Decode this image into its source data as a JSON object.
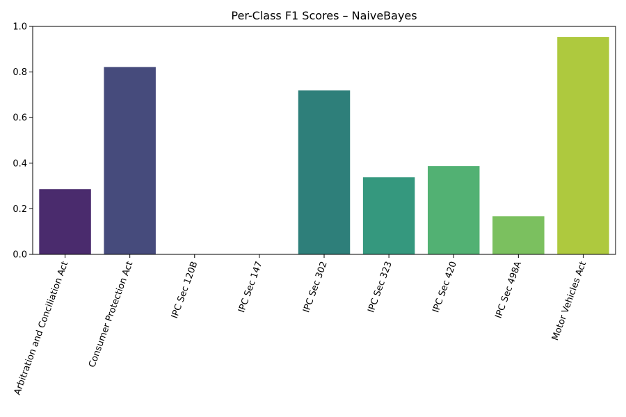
{
  "chart_data": {
    "type": "bar",
    "title": "Per-Class F1 Scores – NaiveBayes",
    "xlabel": "",
    "ylabel": "",
    "categories": [
      "Arbitration and Conciliation Act",
      "Consumer Protection Act",
      "IPC Sec 120B",
      "IPC Sec 147",
      "IPC Sec 302",
      "IPC Sec 323",
      "IPC Sec 420",
      "IPC Sec 498A",
      "Motor Vehicles Act"
    ],
    "values": [
      0.286,
      0.822,
      0.0,
      0.0,
      0.719,
      0.338,
      0.387,
      0.167,
      0.954
    ],
    "colors": [
      "#482173",
      "#433e85",
      "#38588c",
      "#2d708e",
      "#25858e",
      "#1e9b8a",
      "#2ab07f",
      "#52c569",
      "#86d549"
    ],
    "bar_colors": [
      "#4a2b6d",
      "#464b7c",
      "#3b6087",
      "#347185",
      "#2e7f7a",
      "#35987e",
      "#52b173",
      "#7bc05f",
      "#aec93e"
    ],
    "ylim": [
      0,
      1.0
    ],
    "yticks": [
      "0.0",
      "0.2",
      "0.4",
      "0.6",
      "0.8",
      "1.0"
    ],
    "ytick_values": [
      0.0,
      0.2,
      0.4,
      0.6,
      0.8,
      1.0
    ],
    "xtick_rotation_deg": 70,
    "grid": false,
    "legend": "none"
  }
}
